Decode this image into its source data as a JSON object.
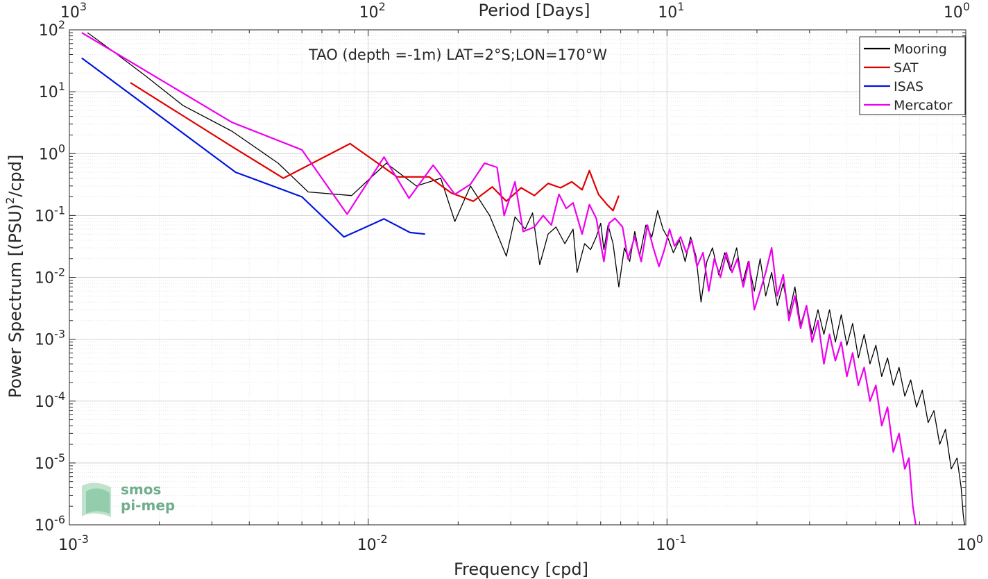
{
  "chart_data": {
    "type": "line",
    "x_scale": "log",
    "y_scale": "log",
    "xlim": [
      0.001,
      1
    ],
    "ylim": [
      1e-06,
      100
    ],
    "xlabel": "Frequency [cpd]",
    "ylabel": "Power Spectrum [(PSU)²/cpd]",
    "ylabel_parts": {
      "pre": "Power Spectrum [(PSU)",
      "sup": "2",
      "post": "/cpd]"
    },
    "top_axis_label": "Period [Days]",
    "x_ticks": [
      {
        "value": 0.001,
        "base": "10",
        "exp": "-3"
      },
      {
        "value": 0.01,
        "base": "10",
        "exp": "-2"
      },
      {
        "value": 0.1,
        "base": "10",
        "exp": "-1"
      },
      {
        "value": 1,
        "base": "10",
        "exp": "0"
      }
    ],
    "top_ticks": [
      {
        "period": 1000,
        "base": "10",
        "exp": "3"
      },
      {
        "period": 100,
        "base": "10",
        "exp": "2"
      },
      {
        "period": 10,
        "base": "10",
        "exp": "1"
      },
      {
        "period": 1,
        "base": "10",
        "exp": "0"
      }
    ],
    "y_ticks": [
      {
        "value": 100,
        "base": "10",
        "exp": "2"
      },
      {
        "value": 10,
        "base": "10",
        "exp": "1"
      },
      {
        "value": 1,
        "base": "10",
        "exp": "0"
      },
      {
        "value": 0.1,
        "base": "10",
        "exp": "-1"
      },
      {
        "value": 0.01,
        "base": "10",
        "exp": "-2"
      },
      {
        "value": 0.001,
        "base": "10",
        "exp": "-3"
      },
      {
        "value": 0.0001,
        "base": "10",
        "exp": "-4"
      },
      {
        "value": 1e-05,
        "base": "10",
        "exp": "-5"
      },
      {
        "value": 1e-06,
        "base": "10",
        "exp": "-6"
      }
    ],
    "grid": true,
    "annotation": "TAO (depth =-1m) LAT=2°S;LON=170°W",
    "legend_position": "top-right",
    "series": [
      {
        "name": "Mooring",
        "color": "#000000",
        "width": 1.3,
        "points": [
          [
            0.00115,
            90
          ],
          [
            0.0014,
            45
          ],
          [
            0.0018,
            18
          ],
          [
            0.0024,
            6
          ],
          [
            0.0035,
            2.3
          ],
          [
            0.005,
            0.7
          ],
          [
            0.0063,
            0.24
          ],
          [
            0.0088,
            0.21
          ],
          [
            0.0115,
            0.7
          ],
          [
            0.0145,
            0.3
          ],
          [
            0.0175,
            0.4
          ],
          [
            0.0195,
            0.08
          ],
          [
            0.022,
            0.3
          ],
          [
            0.0255,
            0.1
          ],
          [
            0.029,
            0.022
          ],
          [
            0.031,
            0.095
          ],
          [
            0.0335,
            0.06
          ],
          [
            0.0355,
            0.11
          ],
          [
            0.0375,
            0.016
          ],
          [
            0.04,
            0.05
          ],
          [
            0.0425,
            0.065
          ],
          [
            0.0455,
            0.035
          ],
          [
            0.0485,
            0.06
          ],
          [
            0.05,
            0.012
          ],
          [
            0.053,
            0.035
          ],
          [
            0.0555,
            0.028
          ],
          [
            0.058,
            0.045
          ],
          [
            0.06,
            0.075
          ],
          [
            0.0615,
            0.028
          ],
          [
            0.0635,
            0.07
          ],
          [
            0.066,
            0.035
          ],
          [
            0.069,
            0.007
          ],
          [
            0.072,
            0.03
          ],
          [
            0.075,
            0.018
          ],
          [
            0.078,
            0.055
          ],
          [
            0.081,
            0.022
          ],
          [
            0.085,
            0.07
          ],
          [
            0.089,
            0.045
          ],
          [
            0.093,
            0.12
          ],
          [
            0.097,
            0.06
          ],
          [
            0.101,
            0.042
          ],
          [
            0.105,
            0.025
          ],
          [
            0.11,
            0.04
          ],
          [
            0.115,
            0.018
          ],
          [
            0.12,
            0.045
          ],
          [
            0.125,
            0.022
          ],
          [
            0.13,
            0.004
          ],
          [
            0.136,
            0.018
          ],
          [
            0.142,
            0.03
          ],
          [
            0.149,
            0.011
          ],
          [
            0.156,
            0.025
          ],
          [
            0.163,
            0.013
          ],
          [
            0.171,
            0.03
          ],
          [
            0.179,
            0.008
          ],
          [
            0.187,
            0.018
          ],
          [
            0.196,
            0.006
          ],
          [
            0.205,
            0.02
          ],
          [
            0.214,
            0.005
          ],
          [
            0.224,
            0.012
          ],
          [
            0.234,
            0.0035
          ],
          [
            0.245,
            0.008
          ],
          [
            0.256,
            0.0025
          ],
          [
            0.268,
            0.007
          ],
          [
            0.28,
            0.0017
          ],
          [
            0.293,
            0.0035
          ],
          [
            0.306,
            0.0012
          ],
          [
            0.32,
            0.003
          ],
          [
            0.335,
            0.0012
          ],
          [
            0.35,
            0.003
          ],
          [
            0.366,
            0.0009
          ],
          [
            0.383,
            0.0025
          ],
          [
            0.4,
            0.0008
          ],
          [
            0.418,
            0.0018
          ],
          [
            0.437,
            0.0005
          ],
          [
            0.457,
            0.0012
          ],
          [
            0.478,
            0.0004
          ],
          [
            0.5,
            0.0008
          ],
          [
            0.523,
            0.00025
          ],
          [
            0.547,
            0.0005
          ],
          [
            0.572,
            0.00018
          ],
          [
            0.598,
            0.00035
          ],
          [
            0.625,
            0.00012
          ],
          [
            0.654,
            0.00022
          ],
          [
            0.684,
            8e-05
          ],
          [
            0.715,
            0.00015
          ],
          [
            0.748,
            4.5e-05
          ],
          [
            0.782,
            7e-05
          ],
          [
            0.818,
            2e-05
          ],
          [
            0.855,
            3.5e-05
          ],
          [
            0.894,
            8e-06
          ],
          [
            0.935,
            1.2e-05
          ],
          [
            0.965,
            4e-06
          ],
          [
            0.98,
            1.5e-06
          ],
          [
            0.99,
            1e-06
          ]
        ]
      },
      {
        "name": "SAT",
        "color": "#e00000",
        "width": 2.2,
        "points": [
          [
            0.0016,
            14
          ],
          [
            0.0035,
            1.3
          ],
          [
            0.0052,
            0.4
          ],
          [
            0.0087,
            1.45
          ],
          [
            0.0125,
            0.42
          ],
          [
            0.016,
            0.42
          ],
          [
            0.019,
            0.23
          ],
          [
            0.0225,
            0.17
          ],
          [
            0.026,
            0.29
          ],
          [
            0.029,
            0.17
          ],
          [
            0.0325,
            0.28
          ],
          [
            0.036,
            0.21
          ],
          [
            0.04,
            0.33
          ],
          [
            0.044,
            0.28
          ],
          [
            0.048,
            0.35
          ],
          [
            0.052,
            0.26
          ],
          [
            0.055,
            0.53
          ],
          [
            0.059,
            0.22
          ],
          [
            0.063,
            0.15
          ],
          [
            0.066,
            0.12
          ],
          [
            0.069,
            0.21
          ]
        ]
      },
      {
        "name": "ISAS",
        "color": "#0016dc",
        "width": 2.2,
        "points": [
          [
            0.0011,
            35
          ],
          [
            0.0036,
            0.5
          ],
          [
            0.006,
            0.2
          ],
          [
            0.0083,
            0.045
          ],
          [
            0.0113,
            0.088
          ],
          [
            0.0138,
            0.053
          ],
          [
            0.0155,
            0.05
          ]
        ]
      },
      {
        "name": "Mercator",
        "color": "#ee00ee",
        "width": 2.2,
        "points": [
          [
            0.0011,
            90
          ],
          [
            0.0035,
            3.2
          ],
          [
            0.006,
            1.15
          ],
          [
            0.0085,
            0.105
          ],
          [
            0.0113,
            0.88
          ],
          [
            0.0137,
            0.19
          ],
          [
            0.0165,
            0.65
          ],
          [
            0.0195,
            0.22
          ],
          [
            0.022,
            0.32
          ],
          [
            0.0245,
            0.7
          ],
          [
            0.027,
            0.6
          ],
          [
            0.0285,
            0.1
          ],
          [
            0.031,
            0.35
          ],
          [
            0.033,
            0.055
          ],
          [
            0.036,
            0.065
          ],
          [
            0.0385,
            0.1
          ],
          [
            0.041,
            0.07
          ],
          [
            0.0435,
            0.22
          ],
          [
            0.046,
            0.13
          ],
          [
            0.0485,
            0.16
          ],
          [
            0.052,
            0.05
          ],
          [
            0.055,
            0.15
          ],
          [
            0.058,
            0.09
          ],
          [
            0.0615,
            0.018
          ],
          [
            0.064,
            0.075
          ],
          [
            0.067,
            0.09
          ],
          [
            0.071,
            0.065
          ],
          [
            0.074,
            0.02
          ],
          [
            0.078,
            0.045
          ],
          [
            0.082,
            0.018
          ],
          [
            0.086,
            0.07
          ],
          [
            0.09,
            0.03
          ],
          [
            0.094,
            0.015
          ],
          [
            0.098,
            0.028
          ],
          [
            0.102,
            0.06
          ],
          [
            0.106,
            0.032
          ],
          [
            0.111,
            0.045
          ],
          [
            0.116,
            0.025
          ],
          [
            0.121,
            0.04
          ],
          [
            0.126,
            0.015
          ],
          [
            0.132,
            0.025
          ],
          [
            0.138,
            0.006
          ],
          [
            0.144,
            0.02
          ],
          [
            0.151,
            0.01
          ],
          [
            0.158,
            0.025
          ],
          [
            0.165,
            0.012
          ],
          [
            0.172,
            0.02
          ],
          [
            0.18,
            0.007
          ],
          [
            0.188,
            0.018
          ],
          [
            0.196,
            0.003
          ],
          [
            0.205,
            0.006
          ],
          [
            0.214,
            0.012
          ],
          [
            0.224,
            0.03
          ],
          [
            0.234,
            0.005
          ],
          [
            0.245,
            0.011
          ],
          [
            0.256,
            0.002
          ],
          [
            0.268,
            0.005
          ],
          [
            0.28,
            0.0015
          ],
          [
            0.293,
            0.0035
          ],
          [
            0.306,
            0.0009
          ],
          [
            0.32,
            0.002
          ],
          [
            0.335,
            0.0004
          ],
          [
            0.35,
            0.0012
          ],
          [
            0.366,
            0.00045
          ],
          [
            0.383,
            0.0009
          ],
          [
            0.4,
            0.00025
          ],
          [
            0.418,
            0.0006
          ],
          [
            0.437,
            0.00018
          ],
          [
            0.457,
            0.00035
          ],
          [
            0.478,
            0.0001
          ],
          [
            0.5,
            0.00018
          ],
          [
            0.523,
            4e-05
          ],
          [
            0.547,
            8e-05
          ],
          [
            0.572,
            1.5e-05
          ],
          [
            0.598,
            3e-05
          ],
          [
            0.625,
            8e-06
          ],
          [
            0.645,
            1.2e-05
          ],
          [
            0.665,
            2e-06
          ],
          [
            0.68,
            1e-06
          ]
        ]
      }
    ],
    "logo": {
      "line1": "smos",
      "line2": "pi-mep"
    }
  }
}
